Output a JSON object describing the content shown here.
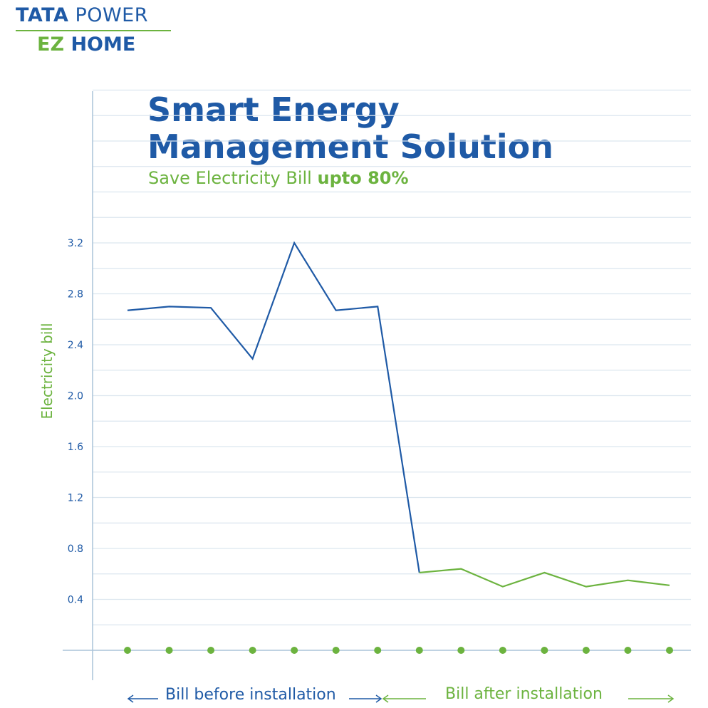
{
  "logo": {
    "tata": "TATA",
    "power": "POWER",
    "ez": "EZ",
    "home": "HOME"
  },
  "header": {
    "title": "Smart Energy Management Solution",
    "subtitle_regular": "Save Electricity Bill ",
    "subtitle_bold": "upto 80%"
  },
  "colors": {
    "blue": "#1f5aa6",
    "green": "#6cb33f",
    "grid": "#dce6ef"
  },
  "chart_data": {
    "type": "line",
    "title": "Smart Energy Management Solution",
    "subtitle": "Save Electricity Bill upto 80%",
    "xlabel": "",
    "ylabel": "Electricity bill",
    "ylim": [
      0,
      4.5
    ],
    "yticks": [
      0.4,
      0.8,
      1.2,
      1.6,
      2.0,
      2.4,
      2.8,
      3.2
    ],
    "ytick_labels": [
      "0.4",
      "0.8",
      "1.2",
      "1.6",
      "2.0",
      "2.4",
      "2.8",
      "3.2"
    ],
    "grid": true,
    "x": [
      1,
      2,
      3,
      4,
      5,
      6,
      7,
      8,
      9,
      10,
      11,
      12,
      13,
      14
    ],
    "series": [
      {
        "name": "",
        "color": "#1f5aa6",
        "points": [
          [
            1,
            2.67
          ],
          [
            2,
            2.7
          ],
          [
            3,
            2.69
          ],
          [
            4,
            2.29
          ],
          [
            5,
            3.2
          ],
          [
            6,
            2.67
          ],
          [
            7,
            2.7
          ],
          [
            8,
            0.61
          ]
        ]
      },
      {
        "name": "",
        "color": "#6cb33f",
        "points": [
          [
            8,
            0.61
          ],
          [
            9,
            0.64
          ],
          [
            10,
            0.5
          ],
          [
            11,
            0.61
          ],
          [
            12,
            0.5
          ],
          [
            13,
            0.55
          ],
          [
            14,
            0.51
          ]
        ]
      }
    ],
    "annotations": {
      "before": "Bill before installation",
      "after": "Bill after installation"
    }
  }
}
